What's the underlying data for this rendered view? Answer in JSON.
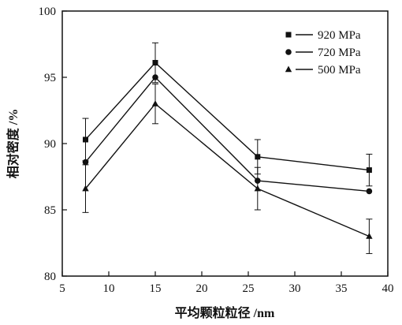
{
  "chart_data": {
    "type": "line",
    "xlabel": "平均颗粒粒径 /nm",
    "ylabel": "相对密度 /%",
    "xlim": [
      5,
      40
    ],
    "ylim": [
      80,
      100
    ],
    "xticks": [
      5,
      10,
      15,
      20,
      25,
      30,
      35,
      40
    ],
    "yticks": [
      80,
      85,
      90,
      95,
      100
    ],
    "grid": false,
    "legend_position": "top-right",
    "x": [
      7.5,
      15,
      26,
      38
    ],
    "series": [
      {
        "name": "920 MPa",
        "marker": "square",
        "values": [
          90.3,
          96.1,
          89.0,
          88.0
        ],
        "err_low": [
          1.6,
          1.5,
          1.3,
          1.2
        ],
        "err_high": [
          1.6,
          1.5,
          1.3,
          1.2
        ]
      },
      {
        "name": "720 MPa",
        "marker": "circle",
        "values": [
          88.6,
          95.0,
          87.2,
          86.4
        ],
        "err_low": [
          0.0,
          0.0,
          0.0,
          0.0
        ],
        "err_high": [
          0.0,
          0.0,
          0.0,
          0.0
        ]
      },
      {
        "name": "500 MPa",
        "marker": "triangle",
        "values": [
          86.6,
          93.0,
          86.6,
          83.0
        ],
        "err_low": [
          1.8,
          1.5,
          1.6,
          1.3
        ],
        "err_high": [
          1.8,
          1.5,
          1.6,
          1.3
        ]
      }
    ]
  }
}
